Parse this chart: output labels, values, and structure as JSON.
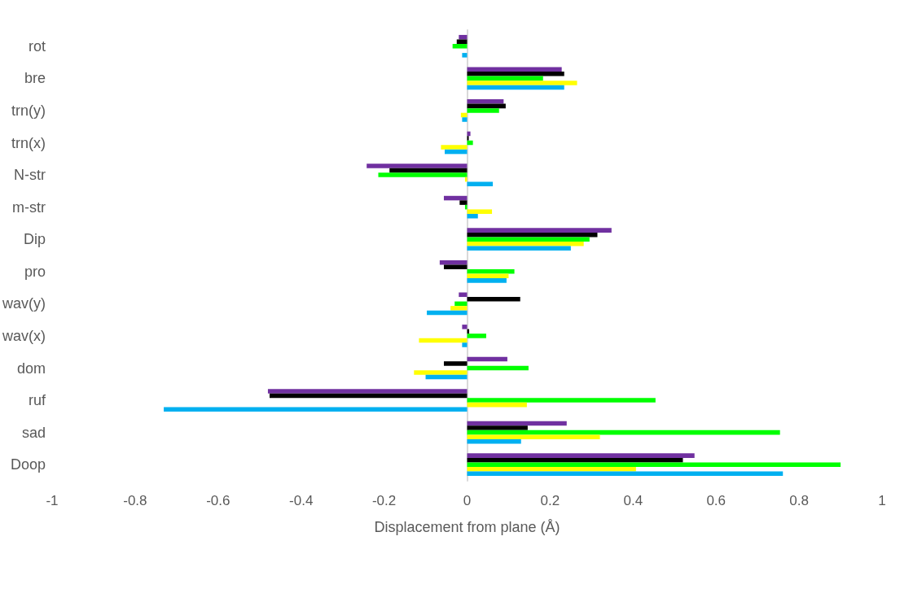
{
  "chart_data": {
    "type": "bar",
    "orientation": "horizontal",
    "xlabel": "Displacement from plane (Å)",
    "categories": [
      "rot",
      "bre",
      "trn(y)",
      "trn(x)",
      "N-str",
      "m-str",
      "Dip",
      "pro",
      "wav(y)",
      "wav(x)",
      "dom",
      "ruf",
      "sad",
      "Doop"
    ],
    "series": [
      {
        "color": "#7030a0",
        "values": [
          -0.02,
          0.228,
          0.088,
          0.008,
          -0.242,
          -0.056,
          0.348,
          -0.066,
          -0.02,
          -0.012,
          0.097,
          -0.48,
          0.24,
          0.548
        ]
      },
      {
        "color": "#000000",
        "values": [
          -0.025,
          0.234,
          0.093,
          0.004,
          -0.187,
          -0.018,
          0.314,
          -0.056,
          0.128,
          0.005,
          -0.056,
          -0.476,
          0.146,
          0.52
        ]
      },
      {
        "color": "#00ff00",
        "values": [
          -0.035,
          0.183,
          0.077,
          0.014,
          -0.214,
          -0.005,
          0.295,
          0.114,
          -0.03,
          0.046,
          0.148,
          0.454,
          0.754,
          0.9
        ]
      },
      {
        "color": "#ffff00",
        "values": [
          0,
          0.265,
          -0.015,
          -0.063,
          -0.005,
          0.06,
          0.281,
          0.1,
          -0.04,
          -0.116,
          -0.128,
          0.144,
          0.32,
          0.407
        ]
      },
      {
        "color": "#00b0f0",
        "values": [
          -0.012,
          0.234,
          -0.012,
          -0.054,
          0.062,
          0.026,
          0.25,
          0.095,
          -0.097,
          -0.012,
          -0.1,
          -0.731,
          0.13,
          0.761
        ]
      }
    ],
    "xlim": [
      -1,
      1
    ],
    "xticks": [
      -1,
      -0.8,
      -0.6,
      -0.4,
      -0.2,
      0,
      0.2,
      0.4,
      0.6,
      0.8,
      1
    ]
  }
}
